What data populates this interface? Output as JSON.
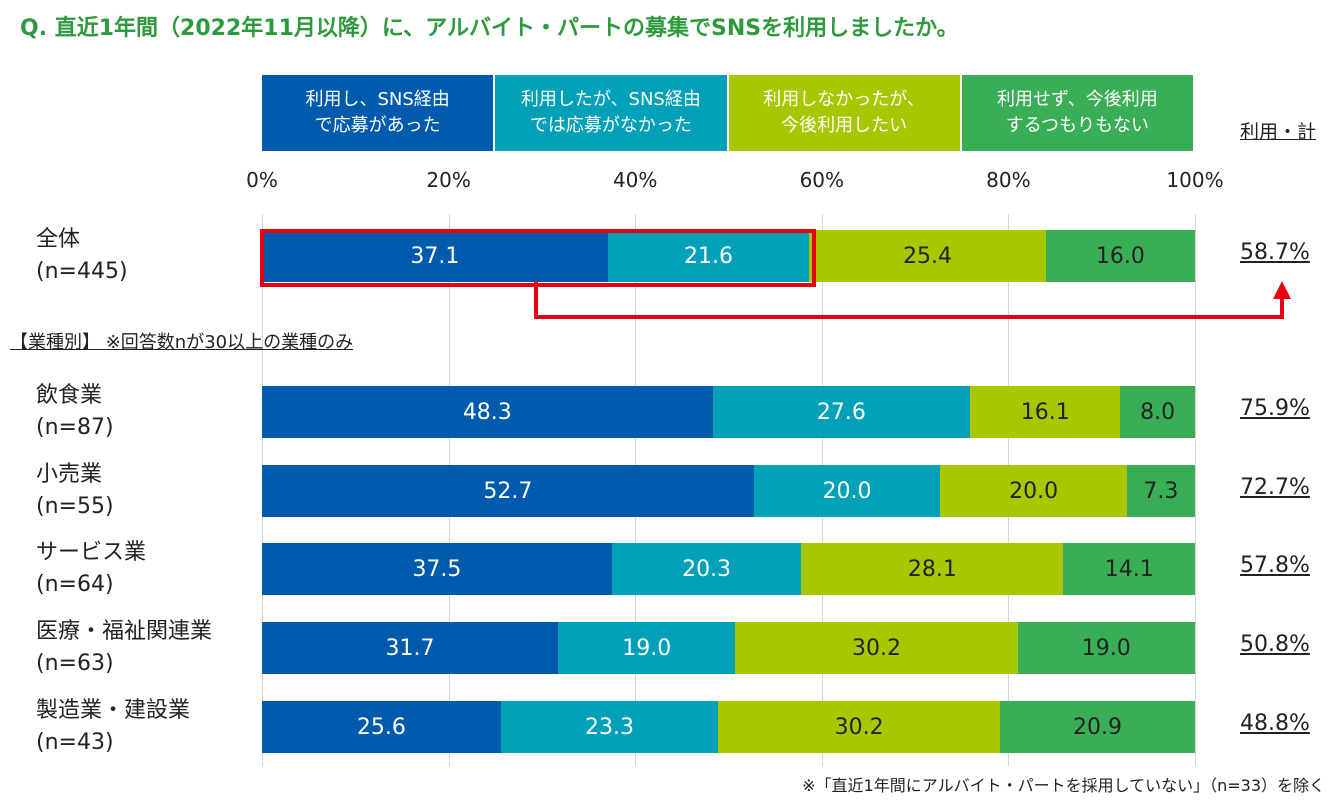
{
  "title": "Q. 直近1年間（2022年11月以降）に、アルバイト・パートの募集でSNSを利用しましたか。",
  "total_header": "利用・計",
  "section_label": "【業種別】 ※回答数nが30以上の業種のみ",
  "footnote": "※「直近1年間にアルバイト・パートを採用していない」（n=33）を除く",
  "colors": {
    "title": "#2e9a3e",
    "highlight": "#e60012"
  },
  "chart_data": {
    "type": "bar",
    "orientation": "horizontal",
    "stacked": true,
    "xlim": [
      0,
      100
    ],
    "xticks": [
      "0%",
      "20%",
      "40%",
      "60%",
      "80%",
      "100%"
    ],
    "grid": true,
    "legend_position": "top",
    "categories": [
      {
        "name": "全体",
        "n": "(n=445)",
        "total": "58.7%"
      },
      {
        "name": "飲食業",
        "n": "(n=87)",
        "total": "75.9%"
      },
      {
        "name": "小売業",
        "n": "(n=55)",
        "total": "72.7%"
      },
      {
        "name": "サービス業",
        "n": "(n=64)",
        "total": "57.8%"
      },
      {
        "name": "医療・福祉関連業",
        "n": "(n=63)",
        "total": "50.8%"
      },
      {
        "name": "製造業・建設業",
        "n": "(n=43)",
        "total": "48.8%"
      }
    ],
    "series": [
      {
        "name": "利用し、SNS経由\nで応募があった",
        "color": "#005bac",
        "text_color": "#ffffff",
        "values": [
          37.1,
          48.3,
          52.7,
          37.5,
          31.7,
          25.6
        ]
      },
      {
        "name": "利用したが、SNS経由\nでは応募がなかった",
        "color": "#00a0b9",
        "text_color": "#ffffff",
        "values": [
          21.6,
          27.6,
          20.0,
          20.3,
          19.0,
          23.3
        ]
      },
      {
        "name": "利用しなかったが、\n今後利用したい",
        "color": "#a8c700",
        "text_color": "#222222",
        "values": [
          25.4,
          16.1,
          20.0,
          28.1,
          30.2,
          30.2
        ]
      },
      {
        "name": "利用せず、今後利用\nするつもりもない",
        "color": "#3aae57",
        "text_color": "#222222",
        "values": [
          16.0,
          8.0,
          7.3,
          14.1,
          19.0,
          20.9
        ]
      }
    ]
  }
}
